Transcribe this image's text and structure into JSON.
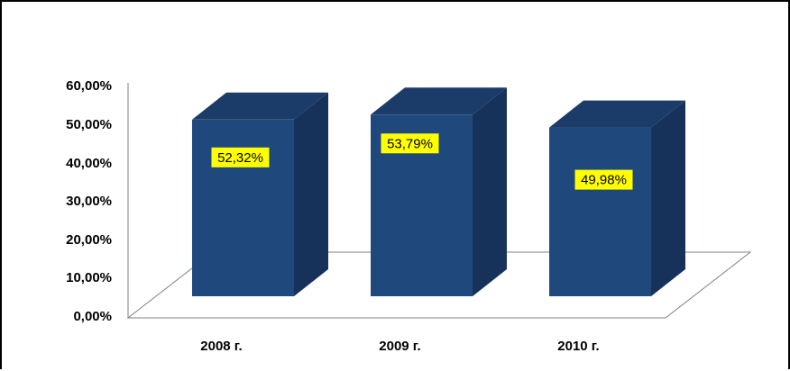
{
  "chart_data": {
    "type": "bar",
    "categories": [
      "2008 г.",
      "2009 г.",
      "2010 г."
    ],
    "values": [
      52.32,
      53.79,
      49.98
    ],
    "data_labels": [
      "52,32%",
      "53,79%",
      "49,98%"
    ],
    "y_ticks": [
      "0,00%",
      "10,00%",
      "20,00%",
      "30,00%",
      "40,00%",
      "50,00%",
      "60,00%"
    ],
    "ylim": [
      0,
      60
    ],
    "title": "",
    "xlabel": "",
    "ylabel": "",
    "grid": false,
    "legend": "none",
    "three_d": true,
    "colors": {
      "bar_front": "#1f497d",
      "bar_side": "#17325a",
      "bar_top": "#1b3c68",
      "label_bg": "#ffff00",
      "floor_line": "#808080"
    }
  }
}
